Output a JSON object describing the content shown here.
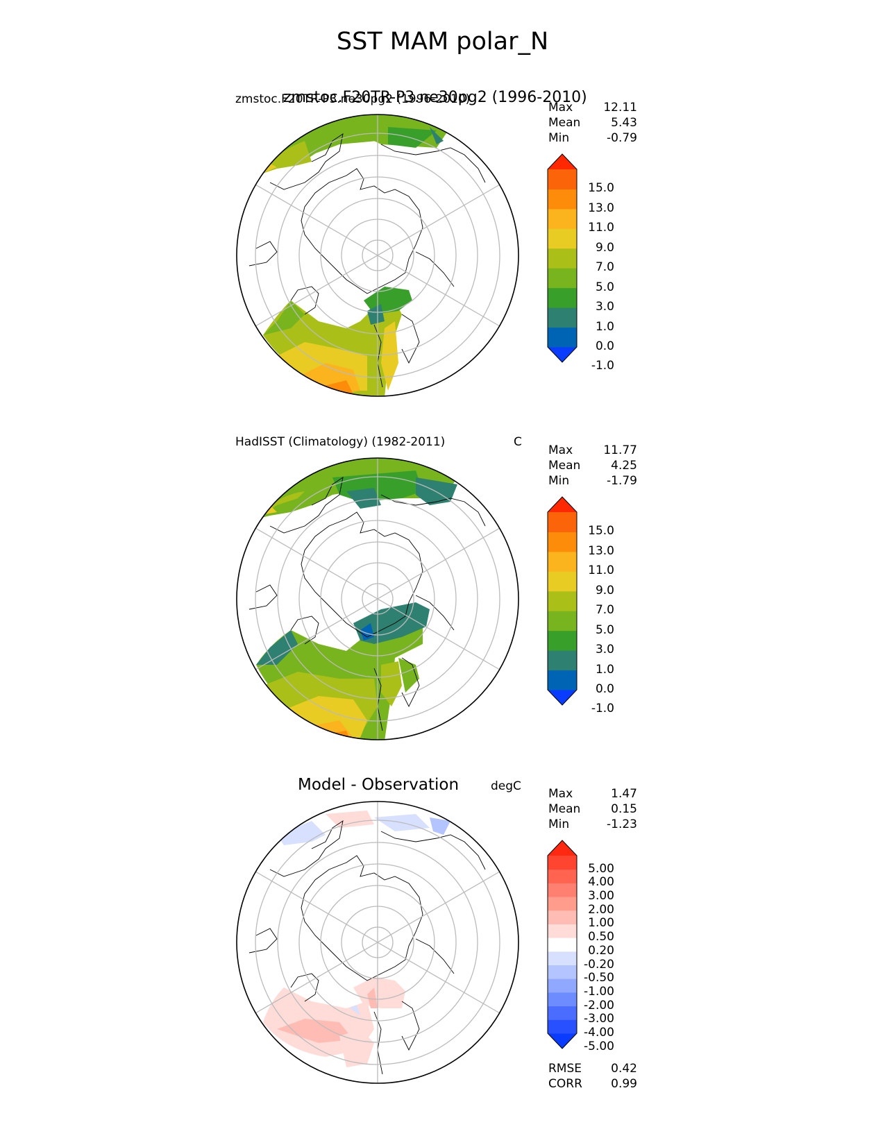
{
  "figure_title": "SST MAM polar_N",
  "colors": {
    "full_field": [
      "#0a3cff",
      "#0064b4",
      "#2e8070",
      "#38a02a",
      "#78b41e",
      "#aac018",
      "#e8cc24",
      "#fcb41e",
      "#fc8c0a",
      "#fc640a",
      "#ff2800"
    ],
    "difference": [
      "#0a3cff",
      "#2850ff",
      "#4a6cff",
      "#6c8cff",
      "#90a8ff",
      "#b4c4ff",
      "#d8e0ff",
      "#ffffff",
      "#ffdcd8",
      "#ffbcb4",
      "#ff9c8c",
      "#ff8070",
      "#ff6450",
      "#ff4430",
      "#ff2810"
    ],
    "land_outline": "#000000",
    "grid": "#bbbbbb"
  },
  "chart_data": [
    {
      "type": "heatmap",
      "projection": "north-polar-stereographic",
      "title_left": "zmstoc.F20TR-P3.ne30pg2 (1996-2010)",
      "title_left_overlap": "zmstoc.F20TR-P3.ne30pg2 (1996-2010)",
      "title_right": "",
      "stats": [
        {
          "label": "Max",
          "value": "12.11"
        },
        {
          "label": "Mean",
          "value": "5.43"
        },
        {
          "label": "Min",
          "value": "-0.79"
        }
      ],
      "colorbar_labels": [
        "15.0",
        "13.0",
        "11.0",
        "9.0",
        "7.0",
        "5.0",
        "3.0",
        "1.0",
        "0.0",
        "-1.0"
      ],
      "levels": [
        -1.0,
        0.0,
        1.0,
        3.0,
        5.0,
        7.0,
        9.0,
        11.0,
        13.0,
        15.0
      ],
      "extend": "both"
    },
    {
      "type": "heatmap",
      "projection": "north-polar-stereographic",
      "title_left": "HadISST (Climatology) (1982-2011)",
      "title_right": "C",
      "stats": [
        {
          "label": "Max",
          "value": "11.77"
        },
        {
          "label": "Mean",
          "value": "4.25"
        },
        {
          "label": "Min",
          "value": "-1.79"
        }
      ],
      "colorbar_labels": [
        "15.0",
        "13.0",
        "11.0",
        "9.0",
        "7.0",
        "5.0",
        "3.0",
        "1.0",
        "0.0",
        "-1.0"
      ],
      "levels": [
        -1.0,
        0.0,
        1.0,
        3.0,
        5.0,
        7.0,
        9.0,
        11.0,
        13.0,
        15.0
      ],
      "extend": "both"
    },
    {
      "type": "heatmap",
      "projection": "north-polar-stereographic",
      "title_center": "Model - Observation",
      "title_right": "degC",
      "stats": [
        {
          "label": "Max",
          "value": "1.47"
        },
        {
          "label": "Mean",
          "value": "0.15"
        },
        {
          "label": "Min",
          "value": "-1.23"
        }
      ],
      "colorbar_labels": [
        "5.00",
        "4.00",
        "3.00",
        "2.00",
        "1.00",
        "0.50",
        "0.20",
        "-0.20",
        "-0.50",
        "-1.00",
        "-2.00",
        "-3.00",
        "-4.00",
        "-5.00"
      ],
      "levels": [
        -5.0,
        -4.0,
        -3.0,
        -2.0,
        -1.0,
        -0.5,
        -0.2,
        0.2,
        0.5,
        1.0,
        2.0,
        3.0,
        4.0,
        5.0
      ],
      "extend": "both",
      "metrics": [
        {
          "label": "RMSE",
          "value": "0.42"
        },
        {
          "label": "CORR",
          "value": "0.99"
        }
      ]
    }
  ]
}
